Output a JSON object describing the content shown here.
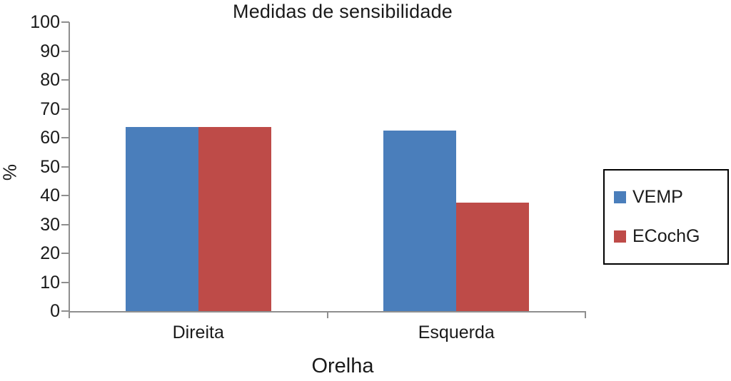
{
  "chart_data": {
    "type": "bar",
    "title": "Medidas de sensibilidade",
    "xlabel": "Orelha",
    "ylabel": "%",
    "categories": [
      "Direita",
      "Esquerda"
    ],
    "series": [
      {
        "name": "VEMP",
        "color": "#4a7ebb",
        "values": [
          63.6,
          62.5
        ]
      },
      {
        "name": "ECochG",
        "color": "#be4b48",
        "values": [
          63.6,
          37.5
        ]
      }
    ],
    "ylim": [
      0,
      100
    ],
    "ytick_step": 10,
    "grid": false,
    "legend_position": "right",
    "axis_color": "#8f8f8f"
  }
}
